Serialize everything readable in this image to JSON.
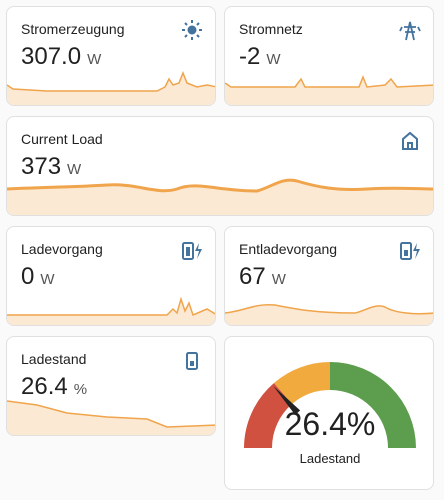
{
  "cards": [
    {
      "title": "Stromerzeugung",
      "value": "307.0",
      "unit": "W"
    },
    {
      "title": "Stromnetz",
      "value": "-2",
      "unit": "W"
    },
    {
      "title": "Current Load",
      "value": "373",
      "unit": "W"
    },
    {
      "title": "Ladevorgang",
      "value": "0",
      "unit": "W"
    },
    {
      "title": "Entladevorgang",
      "value": "67",
      "unit": "W"
    },
    {
      "title": "Ladestand",
      "value": "26.4",
      "unit": "%"
    }
  ],
  "gauge": {
    "value": 26.4,
    "label": "26.4%",
    "name": "Ladestand"
  }
}
